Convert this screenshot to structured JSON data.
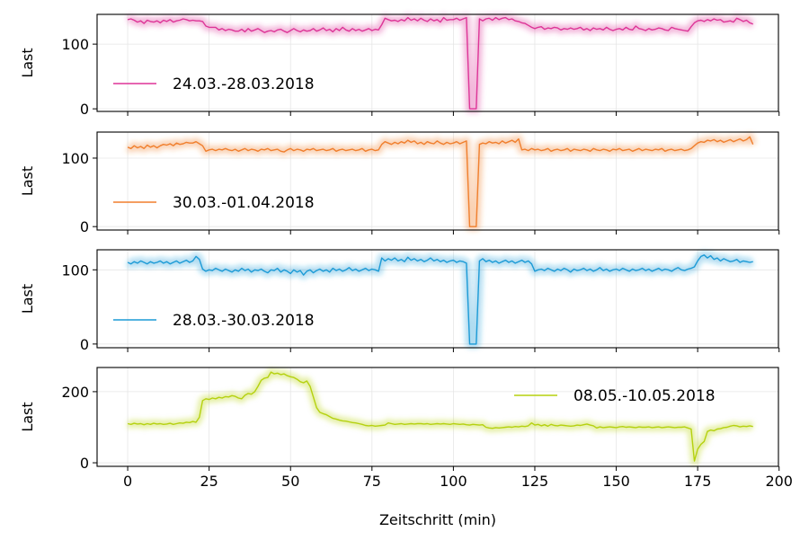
{
  "chart_data": {
    "type": "line",
    "xlabel": "Zeitschritt (min)",
    "xlim": [
      -9.4,
      199.8
    ],
    "xticks": [
      0,
      25,
      50,
      75,
      100,
      125,
      150,
      175,
      200
    ],
    "grid": true,
    "panels": [
      {
        "ylabel": "Last",
        "ylim": [
          -4,
          146
        ],
        "yticks": [
          0,
          100
        ],
        "legend_placement": "lower-left",
        "series": [
          {
            "name": "24.03.-28.03.2018",
            "color": "#dd3497",
            "values": [
              138,
              139,
              137,
              134,
              136,
              132,
              137,
              135,
              134,
              136,
              133,
              137,
              135,
              138,
              134,
              136,
              137,
              139,
              138,
              136,
              137,
              136,
              136,
              135,
              128,
              126,
              126,
              126,
              122,
              124,
              121,
              123,
              122,
              120,
              120,
              123,
              119,
              124,
              120,
              122,
              124,
              121,
              118,
              120,
              121,
              119,
              122,
              123,
              120,
              118,
              121,
              124,
              121,
              119,
              122,
              120,
              121,
              124,
              120,
              122,
              125,
              121,
              123,
              119,
              124,
              121,
              126,
              122,
              120,
              124,
              121,
              123,
              120,
              122,
              124,
              121,
              123,
              122,
              130,
              140,
              138,
              136,
              137,
              135,
              138,
              136,
              141,
              137,
              139,
              136,
              140,
              137,
              135,
              139,
              136,
              138,
              134,
              141,
              137,
              138,
              138,
              140,
              137,
              139,
              141,
              0,
              0,
              0,
              139,
              136,
              139,
              140,
              137,
              141,
              138,
              140,
              141,
              138,
              139,
              136,
              135,
              133,
              132,
              129,
              126,
              124,
              126,
              127,
              123,
              125,
              124,
              126,
              125,
              122,
              124,
              123,
              125,
              123,
              124,
              126,
              122,
              124,
              121,
              125,
              123,
              124,
              122,
              126,
              123,
              121,
              123,
              124,
              122,
              126,
              123,
              122,
              128,
              124,
              123,
              121,
              124,
              122,
              123,
              125,
              124,
              122,
              121,
              126,
              124,
              123,
              122,
              121,
              120,
              127,
              133,
              136,
              137,
              135,
              138,
              136,
              139,
              137,
              138,
              134,
              135,
              136,
              134,
              140,
              138,
              135,
              137,
              133,
              131
            ]
          }
        ]
      },
      {
        "ylabel": "Last",
        "ylim": [
          -5,
          138
        ],
        "yticks": [
          0,
          100
        ],
        "legend_placement": "lower-left",
        "series": [
          {
            "name": "30.03.-01.04.2018",
            "color": "#f07f2d",
            "values": [
              116,
              114,
              118,
              115,
              117,
              114,
              119,
              116,
              118,
              115,
              118,
              120,
              119,
              121,
              118,
              122,
              120,
              121,
              123,
              122,
              122,
              124,
              121,
              118,
              110,
              112,
              113,
              111,
              113,
              112,
              114,
              112,
              111,
              113,
              110,
              112,
              114,
              111,
              113,
              112,
              110,
              113,
              112,
              114,
              111,
              112,
              113,
              110,
              109,
              112,
              114,
              111,
              113,
              112,
              110,
              113,
              112,
              114,
              111,
              112,
              113,
              111,
              112,
              114,
              110,
              112,
              113,
              111,
              112,
              113,
              111,
              112,
              114,
              110,
              112,
              113,
              111,
              112,
              120,
              124,
              122,
              120,
              123,
              121,
              124,
              122,
              126,
              123,
              125,
              121,
              123,
              120,
              124,
              122,
              121,
              125,
              122,
              120,
              123,
              121,
              122,
              124,
              121,
              123,
              125,
              0,
              0,
              0,
              120,
              122,
              121,
              124,
              122,
              123,
              121,
              125,
              122,
              124,
              126,
              123,
              128,
              112,
              113,
              111,
              114,
              112,
              113,
              111,
              112,
              114,
              110,
              112,
              113,
              111,
              112,
              114,
              110,
              113,
              112,
              111,
              113,
              112,
              110,
              114,
              112,
              111,
              113,
              112,
              110,
              113,
              112,
              114,
              111,
              112,
              113,
              110,
              112,
              114,
              111,
              113,
              112,
              111,
              113,
              112,
              114,
              110,
              112,
              113,
              111,
              112,
              113,
              111,
              112,
              114,
              118,
              122,
              124,
              123,
              126,
              125,
              127,
              124,
              126,
              123,
              125,
              127,
              124,
              126,
              128,
              125,
              127,
              131,
              120
            ]
          }
        ]
      },
      {
        "ylabel": "Last",
        "ylim": [
          -5,
          127
        ],
        "yticks": [
          0,
          100
        ],
        "legend_placement": "lower-left",
        "series": [
          {
            "name": "28.03.-30.03.2018",
            "color": "#1b9ad6",
            "values": [
              110,
              108,
              111,
              109,
              112,
              110,
              108,
              111,
              109,
              110,
              112,
              109,
              111,
              108,
              110,
              112,
              109,
              111,
              113,
              110,
              112,
              118,
              114,
              101,
              98,
              100,
              99,
              102,
              100,
              98,
              101,
              99,
              97,
              100,
              98,
              102,
              99,
              101,
              97,
              100,
              99,
              101,
              98,
              96,
              100,
              99,
              102,
              97,
              100,
              98,
              95,
              100,
              97,
              99,
              93,
              98,
              100,
              96,
              99,
              101,
              98,
              100,
              97,
              102,
              99,
              101,
              98,
              100,
              103,
              99,
              101,
              98,
              100,
              102,
              99,
              101,
              100,
              98,
              116,
              112,
              115,
              113,
              116,
              112,
              114,
              111,
              117,
              113,
              115,
              112,
              114,
              111,
              113,
              116,
              112,
              114,
              111,
              113,
              110,
              112,
              113,
              110,
              112,
              111,
              109,
              0,
              0,
              0,
              112,
              115,
              111,
              113,
              110,
              112,
              109,
              111,
              113,
              110,
              112,
              109,
              111,
              113,
              110,
              112,
              108,
              98,
              100,
              101,
              99,
              102,
              100,
              98,
              101,
              99,
              102,
              100,
              97,
              101,
              99,
              100,
              102,
              99,
              101,
              98,
              100,
              103,
              99,
              101,
              98,
              100,
              101,
              99,
              102,
              100,
              98,
              101,
              99,
              100,
              102,
              99,
              101,
              98,
              100,
              102,
              99,
              101,
              100,
              98,
              101,
              103,
              100,
              99,
              101,
              102,
              104,
              112,
              118,
              120,
              116,
              119,
              114,
              116,
              112,
              115,
              113,
              111,
              112,
              114,
              110,
              112,
              111,
              110,
              111
            ]
          }
        ]
      },
      {
        "ylabel": "Last",
        "ylim": [
          -10,
          268
        ],
        "yticks": [
          0,
          200
        ],
        "legend_placement": "upper-right",
        "series": [
          {
            "name": "08.05.-10.05.2018",
            "color": "#b5d10f",
            "values": [
              110,
              108,
              111,
              109,
              110,
              107,
              110,
              108,
              111,
              109,
              110,
              108,
              109,
              111,
              108,
              110,
              112,
              111,
              114,
              113,
              116,
              114,
              128,
              175,
              180,
              178,
              182,
              180,
              184,
              182,
              186,
              185,
              189,
              187,
              182,
              180,
              190,
              195,
              193,
              200,
              215,
              232,
              238,
              240,
              255,
              250,
              252,
              248,
              250,
              245,
              242,
              240,
              235,
              228,
              225,
              230,
              215,
              185,
              155,
              142,
              138,
              135,
              130,
              125,
              123,
              120,
              118,
              117,
              115,
              113,
              112,
              110,
              108,
              105,
              104,
              105,
              103,
              104,
              105,
              106,
              112,
              110,
              108,
              109,
              110,
              108,
              109,
              110,
              109,
              110,
              110,
              109,
              110,
              108,
              109,
              110,
              109,
              110,
              109,
              108,
              110,
              109,
              108,
              109,
              107,
              106,
              108,
              107,
              106,
              107,
              100,
              98,
              97,
              99,
              98,
              99,
              100,
              101,
              100,
              102,
              101,
              103,
              102,
              104,
              112,
              106,
              108,
              104,
              107,
              103,
              108,
              105,
              104,
              106,
              105,
              104,
              103,
              104,
              106,
              105,
              107,
              109,
              106,
              104,
              98,
              101,
              99,
              100,
              101,
              100,
              99,
              101,
              102,
              100,
              101,
              100,
              99,
              101,
              100,
              100,
              101,
              99,
              100,
              101,
              99,
              100,
              101,
              100,
              99,
              100,
              100,
              101,
              98,
              95,
              5,
              38,
              52,
              60,
              88,
              92,
              90,
              95,
              96,
              99,
              100,
              103,
              105,
              104,
              101,
              103,
              102,
              104,
              102
            ]
          }
        ]
      }
    ]
  }
}
